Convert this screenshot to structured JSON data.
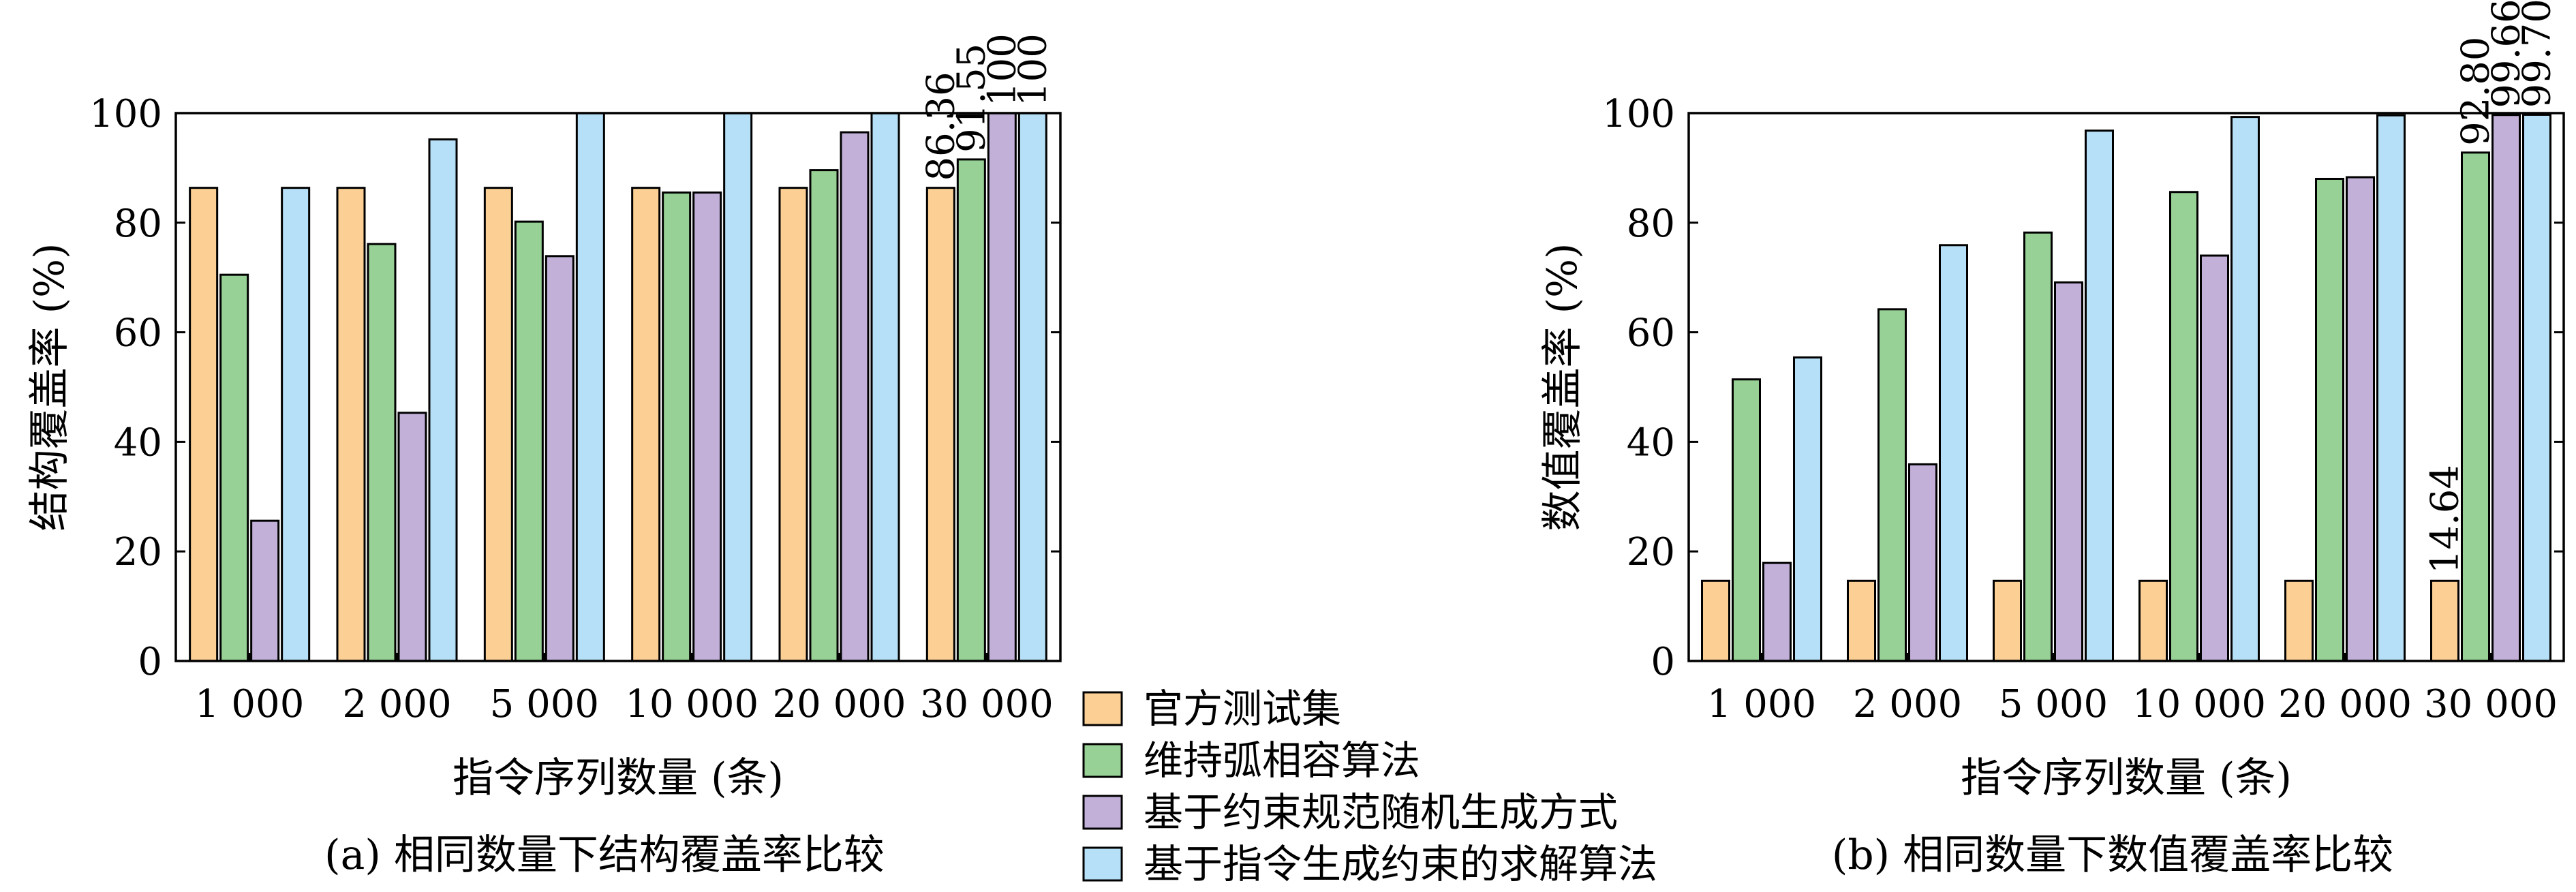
{
  "chart_data": [
    {
      "type": "bar",
      "title": "(a) 相同数量下结构覆盖率比较",
      "xlabel": "指令序列数量 (条)",
      "ylabel": "结构覆盖率 (%)",
      "ylim": [
        0,
        100
      ],
      "yticks": [
        "0",
        "20",
        "40",
        "60",
        "80",
        "100"
      ],
      "categories": [
        "1 000",
        "2 000",
        "5 000",
        "10 000",
        "20 000",
        "30 000"
      ],
      "grid": false,
      "series": [
        {
          "name": "官方测试集",
          "color": "#fccf94",
          "values": [
            86.36,
            86.36,
            86.36,
            86.36,
            86.36,
            86.36
          ]
        },
        {
          "name": "维持弧相容算法",
          "color": "#98d195",
          "values": [
            70.5,
            76.1,
            80.2,
            85.5,
            89.6,
            91.55
          ]
        },
        {
          "name": "基于约束规范随机生成方式",
          "color": "#c2b0d9",
          "values": [
            25.6,
            45.3,
            73.9,
            85.5,
            96.5,
            100
          ]
        },
        {
          "name": "基于指令生成约束的求解算法",
          "color": "#b6e0f7",
          "values": [
            86.36,
            95.2,
            100,
            100,
            100,
            100
          ]
        }
      ],
      "annotations": [
        {
          "category": "30 000",
          "series": 0,
          "text": "86.36"
        },
        {
          "category": "30 000",
          "series": 1,
          "text": "91.55"
        },
        {
          "category": "30 000",
          "series": 2,
          "text": "100"
        },
        {
          "category": "30 000",
          "series": 3,
          "text": "100"
        }
      ]
    },
    {
      "type": "bar",
      "title": "(b) 相同数量下数值覆盖率比较",
      "xlabel": "指令序列数量 (条)",
      "ylabel": "数值覆盖率 (%)",
      "ylim": [
        0,
        100
      ],
      "yticks": [
        "0",
        "20",
        "40",
        "60",
        "80",
        "100"
      ],
      "categories": [
        "1 000",
        "2 000",
        "5 000",
        "10 000",
        "20 000",
        "30 000"
      ],
      "grid": false,
      "series": [
        {
          "name": "官方测试集",
          "color": "#fccf94",
          "values": [
            14.64,
            14.64,
            14.64,
            14.64,
            14.64,
            14.64
          ]
        },
        {
          "name": "维持弧相容算法",
          "color": "#98d195",
          "values": [
            51.4,
            64.2,
            78.2,
            85.6,
            88.0,
            92.8
          ]
        },
        {
          "name": "基于约束规范随机生成方式",
          "color": "#c2b0d9",
          "values": [
            17.9,
            35.9,
            69.1,
            74.0,
            88.3,
            99.66
          ]
        },
        {
          "name": "基于指令生成约束的求解算法",
          "color": "#b6e0f7",
          "values": [
            55.4,
            75.9,
            96.8,
            99.3,
            99.6,
            99.7
          ]
        }
      ],
      "annotations": [
        {
          "category": "30 000",
          "series": 0,
          "text": "14.64"
        },
        {
          "category": "30 000",
          "series": 1,
          "text": "92.80"
        },
        {
          "category": "30 000",
          "series": 2,
          "text": "99.66"
        },
        {
          "category": "30 000",
          "series": 3,
          "text": "99.70"
        }
      ]
    }
  ],
  "legend": {
    "placement": "center",
    "items": [
      "官方测试集",
      "维持弧相容算法",
      "基于约束规范随机生成方式",
      "基于指令生成约束的求解算法"
    ]
  }
}
